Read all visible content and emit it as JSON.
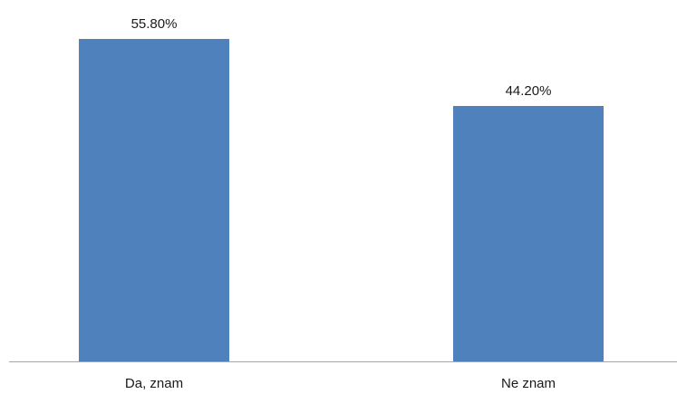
{
  "chart_data": {
    "type": "bar",
    "categories": [
      "Da, znam",
      "Ne znam"
    ],
    "values": [
      55.8,
      44.2
    ],
    "data_labels": [
      "55.80%",
      "44.20%"
    ],
    "unit": "%",
    "title": "",
    "xlabel": "",
    "ylabel": "",
    "ylim": [
      0,
      60
    ],
    "grid": false,
    "legend": "none",
    "bar_color": "#4f81bd",
    "axis_color": "#a6a6a6"
  }
}
